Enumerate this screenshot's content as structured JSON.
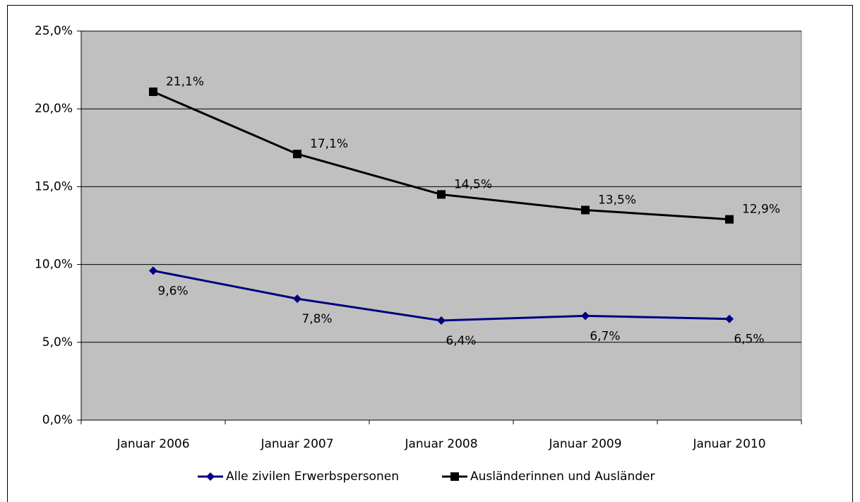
{
  "chart_data": {
    "type": "line",
    "categories": [
      "Januar 2006",
      "Januar 2007",
      "Januar 2008",
      "Januar 2009",
      "Januar 2010"
    ],
    "series": [
      {
        "name": "Alle zivilen Erwerbspersonen",
        "color": "#000080",
        "marker": "diamond",
        "values": [
          9.6,
          7.8,
          6.4,
          6.7,
          6.5
        ],
        "value_labels": [
          "9,6%",
          "7,8%",
          "6,4%",
          "6,7%",
          "6,5%"
        ]
      },
      {
        "name": "Ausländerinnen und Ausländer",
        "color": "#000000",
        "marker": "square",
        "values": [
          21.1,
          17.1,
          14.5,
          13.5,
          12.9
        ],
        "value_labels": [
          "21,1%",
          "17,1%",
          "14,5%",
          "13,5%",
          "12,9%"
        ]
      }
    ],
    "ylim": [
      0,
      25
    ],
    "yticks": [
      {
        "value": 0,
        "label": "0,0%"
      },
      {
        "value": 5,
        "label": "5,0%"
      },
      {
        "value": 10,
        "label": "10,0%"
      },
      {
        "value": 15,
        "label": "15,0%"
      },
      {
        "value": 20,
        "label": "20,0%"
      },
      {
        "value": 25,
        "label": "25,0%"
      }
    ],
    "grid": true,
    "background": "#c0c0c0",
    "legend": "bottom"
  }
}
